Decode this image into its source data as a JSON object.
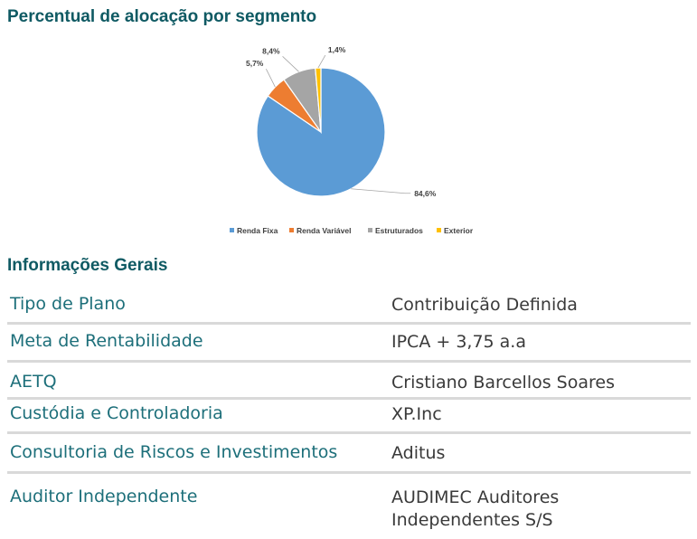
{
  "chart_title": "Percentual de alocação por segmento",
  "info_title": "Informações Gerais",
  "chart_data": {
    "type": "pie",
    "title": "",
    "categories": [
      "Renda Fixa",
      "Renda Variável",
      "Estruturados",
      "Exterior"
    ],
    "values": [
      84.6,
      5.7,
      8.4,
      1.4
    ],
    "labels": [
      "84,6%",
      "5,7%",
      "8,4%",
      "1,4%"
    ],
    "colors": [
      "#5b9bd5",
      "#ed7d31",
      "#a5a5a5",
      "#ffc000"
    ],
    "legend_position": "bottom"
  },
  "info_rows": [
    {
      "label": "Tipo de Plano",
      "value": "Contribuição Definida"
    },
    {
      "label": "Meta de Rentabilidade",
      "value": "IPCA + 3,75 a.a"
    },
    {
      "label": "AETQ",
      "value": "Cristiano Barcellos Soares"
    },
    {
      "label": "Custódia e Controladoria",
      "value": "XP.Inc"
    },
    {
      "label": "Consultoria de Riscos e Investimentos",
      "value": "Aditus"
    },
    {
      "label": "Auditor Independente",
      "value": "AUDIMEC Auditores Independentes S/S"
    }
  ]
}
